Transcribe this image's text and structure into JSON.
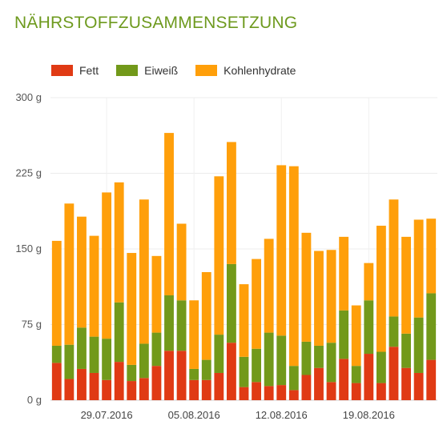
{
  "title": "NÄHRSTOFFZUSAMMENSETZUNG",
  "chart_data": {
    "type": "bar",
    "stacked": true,
    "title": "NÄHRSTOFFZUSAMMENSETZUNG",
    "xlabel": "",
    "ylabel": "",
    "ylim": [
      0,
      300
    ],
    "y_ticks": [
      "0 g",
      "75 g",
      "150 g",
      "225 g",
      "300 g"
    ],
    "x_tick_labels": [
      "29.07.2016",
      "05.08.2016",
      "12.08.2016",
      "19.08.2016"
    ],
    "legend": "top-left",
    "grid": true,
    "series": [
      {
        "name": "Fett",
        "color": "#e03a14",
        "values": [
          37,
          21,
          31,
          27,
          20,
          38,
          19,
          22,
          34,
          49,
          49,
          20,
          20,
          27,
          57,
          13,
          18,
          14,
          15,
          10,
          25,
          32,
          18,
          41,
          17,
          46,
          17,
          53,
          32,
          27,
          40
        ]
      },
      {
        "name": "Eiweiß",
        "color": "#72991a",
        "values": [
          17,
          34,
          41,
          36,
          41,
          59,
          16,
          34,
          33,
          55,
          50,
          11,
          20,
          38,
          78,
          30,
          33,
          53,
          49,
          24,
          33,
          22,
          39,
          48,
          17,
          53,
          31,
          30,
          34,
          55,
          66
        ]
      },
      {
        "name": "Kohlenhydrate",
        "color": "#ff9f0a",
        "values": [
          104,
          140,
          110,
          100,
          145,
          119,
          111,
          143,
          76,
          161,
          76,
          68,
          87,
          157,
          121,
          72,
          89,
          93,
          169,
          198,
          108,
          94,
          92,
          73,
          60,
          37,
          125,
          116,
          96,
          97,
          74
        ]
      }
    ]
  }
}
